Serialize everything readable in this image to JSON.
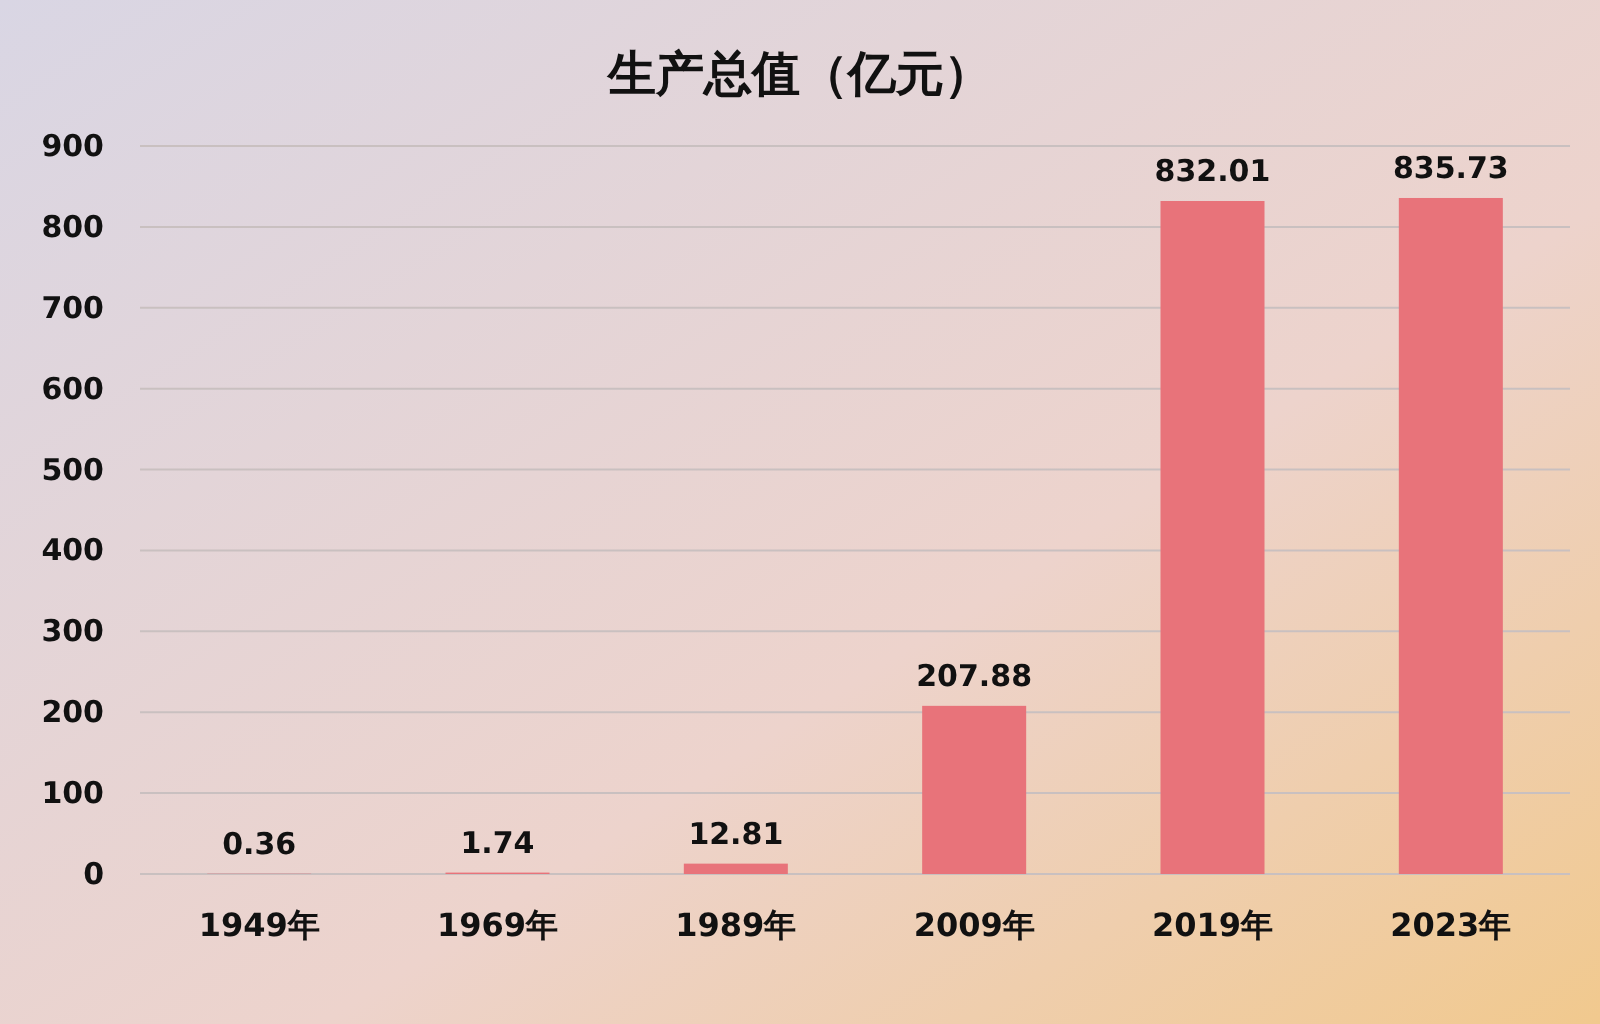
{
  "chart_data": {
    "type": "bar",
    "title": "生产总值（亿元）",
    "categories": [
      "1949年",
      "1969年",
      "1989年",
      "2009年",
      "2019年",
      "2023年"
    ],
    "values": [
      0.36,
      1.74,
      12.81,
      207.88,
      832.01,
      835.73
    ],
    "color": "#e8737a",
    "ylim": [
      0,
      900
    ],
    "yticks": [
      0,
      100,
      200,
      300,
      400,
      500,
      600,
      700,
      800,
      900
    ],
    "grid": "y",
    "data_labels": true
  }
}
